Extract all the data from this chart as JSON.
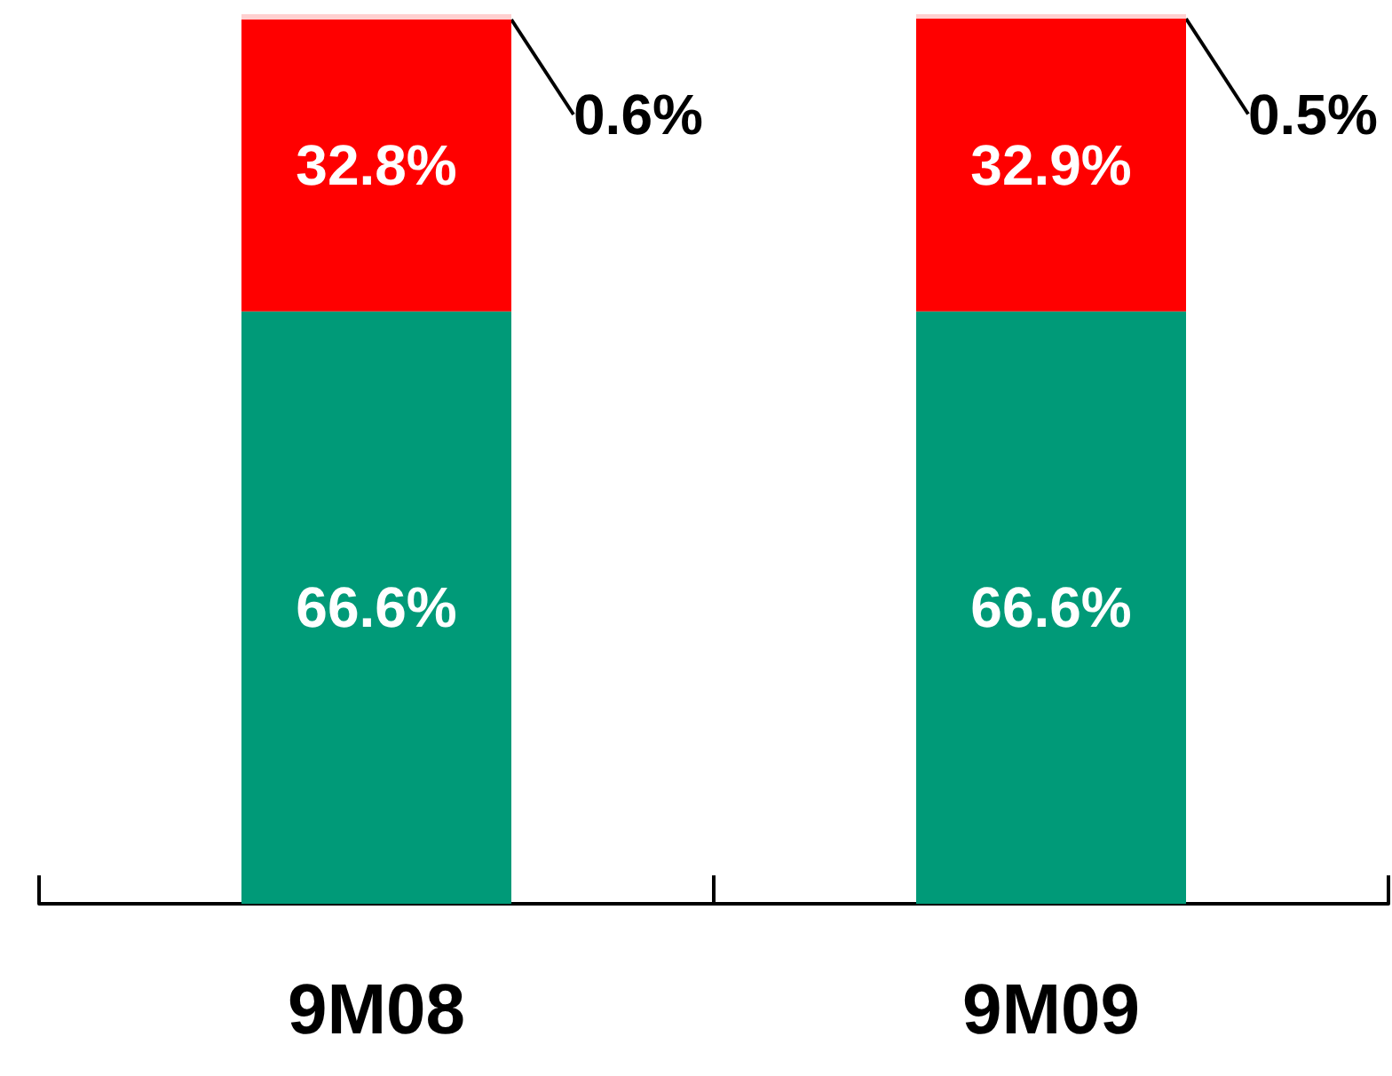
{
  "chart_data": {
    "type": "bar",
    "stacked": true,
    "categories": [
      "9M08",
      "9M09"
    ],
    "series": [
      {
        "color": "#009a78",
        "values": [
          66.6,
          66.6
        ],
        "value_labels": [
          "66.6%",
          "66.6%"
        ]
      },
      {
        "color": "#ff0000",
        "values": [
          32.8,
          32.9
        ],
        "value_labels": [
          "32.8%",
          "32.9%"
        ]
      },
      {
        "color": "#ffd0d0",
        "values": [
          0.6,
          0.5
        ],
        "value_labels": [
          "0.6%",
          "0.5%"
        ]
      }
    ]
  }
}
